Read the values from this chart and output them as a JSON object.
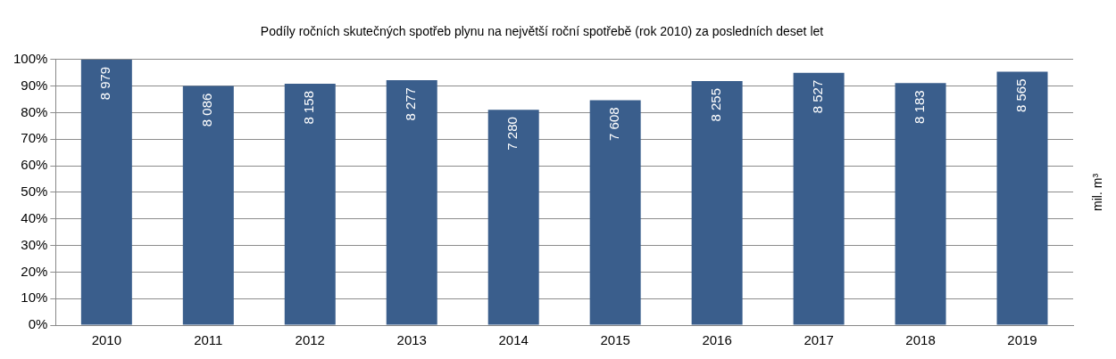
{
  "chart_data": {
    "type": "bar",
    "title": "Podíly ročních skutečných spotřeb plynu na největší roční spotřebě (rok 2010) za posledních deset let",
    "y2label": "mil. m³",
    "categories": [
      "2010",
      "2011",
      "2012",
      "2013",
      "2014",
      "2015",
      "2016",
      "2017",
      "2018",
      "2019"
    ],
    "values": [
      100,
      90,
      90.9,
      92.2,
      81.1,
      84.7,
      91.9,
      95,
      91.1,
      95.4
    ],
    "annotations": [
      {
        "text": "8 979",
        "x": "2010",
        "y": 100
      },
      {
        "text": "8 086",
        "x": "2011",
        "y": 90
      },
      {
        "text": "8 158",
        "x": "2012",
        "y": 90.9
      },
      {
        "text": "8 277",
        "x": "2013",
        "y": 92.2
      },
      {
        "text": "7 280",
        "x": "2014",
        "y": 81.1
      },
      {
        "text": "7 608",
        "x": "2015",
        "y": 84.7
      },
      {
        "text": "8 255",
        "x": "2016",
        "y": 91.9
      },
      {
        "text": "8 527",
        "x": "2017",
        "y": 95
      },
      {
        "text": "8 183",
        "x": "2018",
        "y": 91.1
      },
      {
        "text": "8 565",
        "x": "2019",
        "y": 95.4
      }
    ],
    "color": "#3a5e8c",
    "ylim": [
      0,
      100
    ],
    "yticks": [
      {
        "value": 0,
        "label": "0%"
      },
      {
        "value": 10,
        "label": "10%"
      },
      {
        "value": 20,
        "label": "20%"
      },
      {
        "value": 30,
        "label": "30%"
      },
      {
        "value": 40,
        "label": "40%"
      },
      {
        "value": 50,
        "label": "50%"
      },
      {
        "value": 60,
        "label": "60%"
      },
      {
        "value": 70,
        "label": "70%"
      },
      {
        "value": 80,
        "label": "80%"
      },
      {
        "value": 90,
        "label": "90%"
      },
      {
        "value": 100,
        "label": "100%"
      }
    ],
    "grid": "y",
    "legend": false
  }
}
